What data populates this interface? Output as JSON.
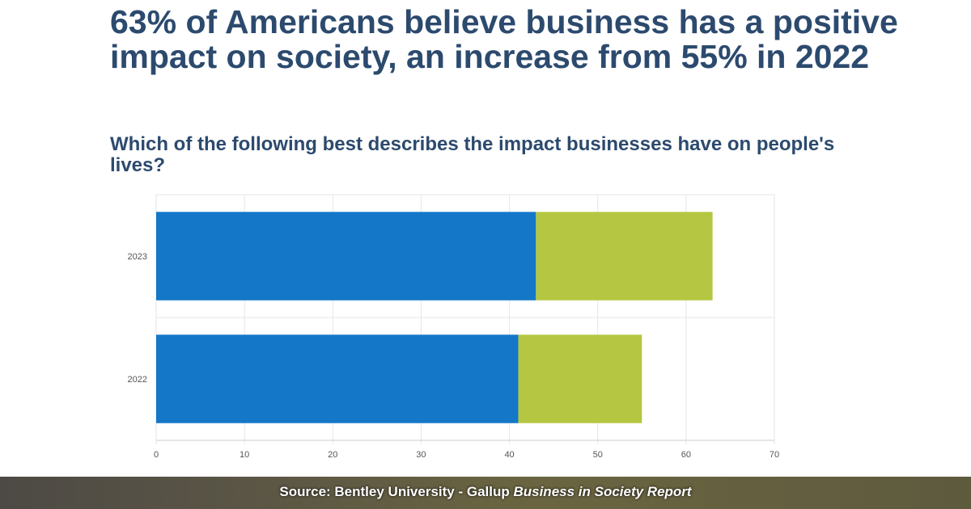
{
  "title": "63% of Americans believe business has a positive impact on society, an increase from 55% in 2022",
  "subtitle": "Which of the following best describes the impact businesses have on people's lives?",
  "footer": {
    "source_prefix": "Source: Bentley University - Gallup ",
    "source_italic": "Business in Society Report"
  },
  "chart_data": {
    "type": "bar",
    "orientation": "horizontal",
    "stacked": true,
    "categories": [
      "2023",
      "2022"
    ],
    "series": [
      {
        "values": [
          43,
          41
        ],
        "color": "#1477c8"
      },
      {
        "values": [
          20,
          14
        ],
        "color": "#b5c642"
      }
    ],
    "xlim": [
      0,
      70
    ],
    "xticks": [
      0,
      10,
      20,
      30,
      40,
      50,
      60,
      70
    ],
    "grid": true,
    "legend": "none"
  }
}
